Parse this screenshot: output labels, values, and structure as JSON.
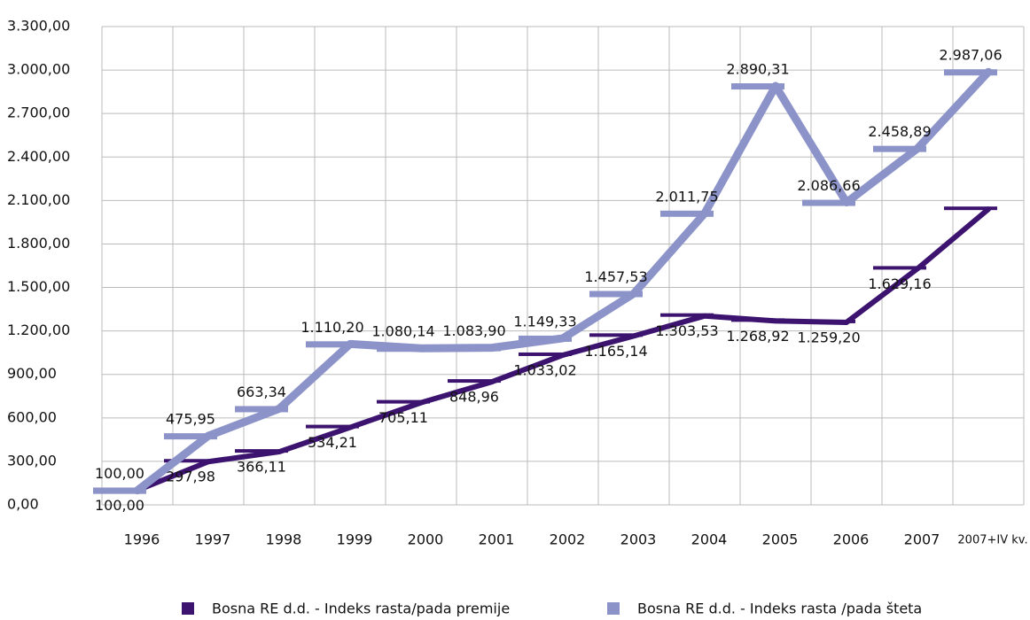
{
  "chart_data": {
    "type": "line",
    "categories": [
      "1996",
      "1997",
      "1998",
      "1999",
      "2000",
      "2001",
      "2002",
      "2003",
      "2004",
      "2005",
      "2006",
      "2007",
      "2007+IV kv."
    ],
    "series": [
      {
        "name": "Bosna RE d.d. - Indeks rasta/pada premije",
        "color": "#3d1370",
        "values": [
          100,
          297.98,
          366.11,
          534.21,
          705.11,
          848.96,
          1033.02,
          1165.14,
          1303.53,
          1268.92,
          1259.2,
          1629.16,
          2040
        ],
        "value_labels": [
          "100,00",
          "297,98",
          "366,11",
          "534,21",
          "705,11",
          "848,96",
          "1.033,02",
          "1.165,14",
          "1.303,53",
          "1.268,92",
          "1.259,20",
          "1.629,16",
          null
        ]
      },
      {
        "name": "Bosna RE d.d. - Indeks rasta /pada šteta",
        "color": "#8b93c9",
        "values": [
          100,
          475.95,
          663.34,
          1110.2,
          1080.14,
          1083.9,
          1149.33,
          1457.53,
          2011.75,
          2890.31,
          2086.66,
          2458.89,
          2987.06
        ],
        "value_labels": [
          "100,00",
          "475,95",
          "663,34",
          "1.110,20",
          "1.080,14",
          "1.083,90",
          "1.149,33",
          "1.457,53",
          "2.011,75",
          "2.890,31",
          "2.086,66",
          "2.458,89",
          "2.987,06"
        ]
      }
    ],
    "ylim": [
      0,
      3300
    ],
    "yticks": [
      {
        "value": 0,
        "label": "0,00"
      },
      {
        "value": 300,
        "label": "300,00"
      },
      {
        "value": 600,
        "label": "600,00"
      },
      {
        "value": 900,
        "label": "900,00"
      },
      {
        "value": 1200,
        "label": "1.200,00"
      },
      {
        "value": 1500,
        "label": "1.500,00"
      },
      {
        "value": 1800,
        "label": "1.800,00"
      },
      {
        "value": 2100,
        "label": "2.100,00"
      },
      {
        "value": 2400,
        "label": "2.400,00"
      },
      {
        "value": 2700,
        "label": "2.700,00"
      },
      {
        "value": 3000,
        "label": "3.000,00"
      },
      {
        "value": 3300,
        "label": "3.300,00"
      }
    ],
    "grid": true,
    "legend": "bottom"
  }
}
